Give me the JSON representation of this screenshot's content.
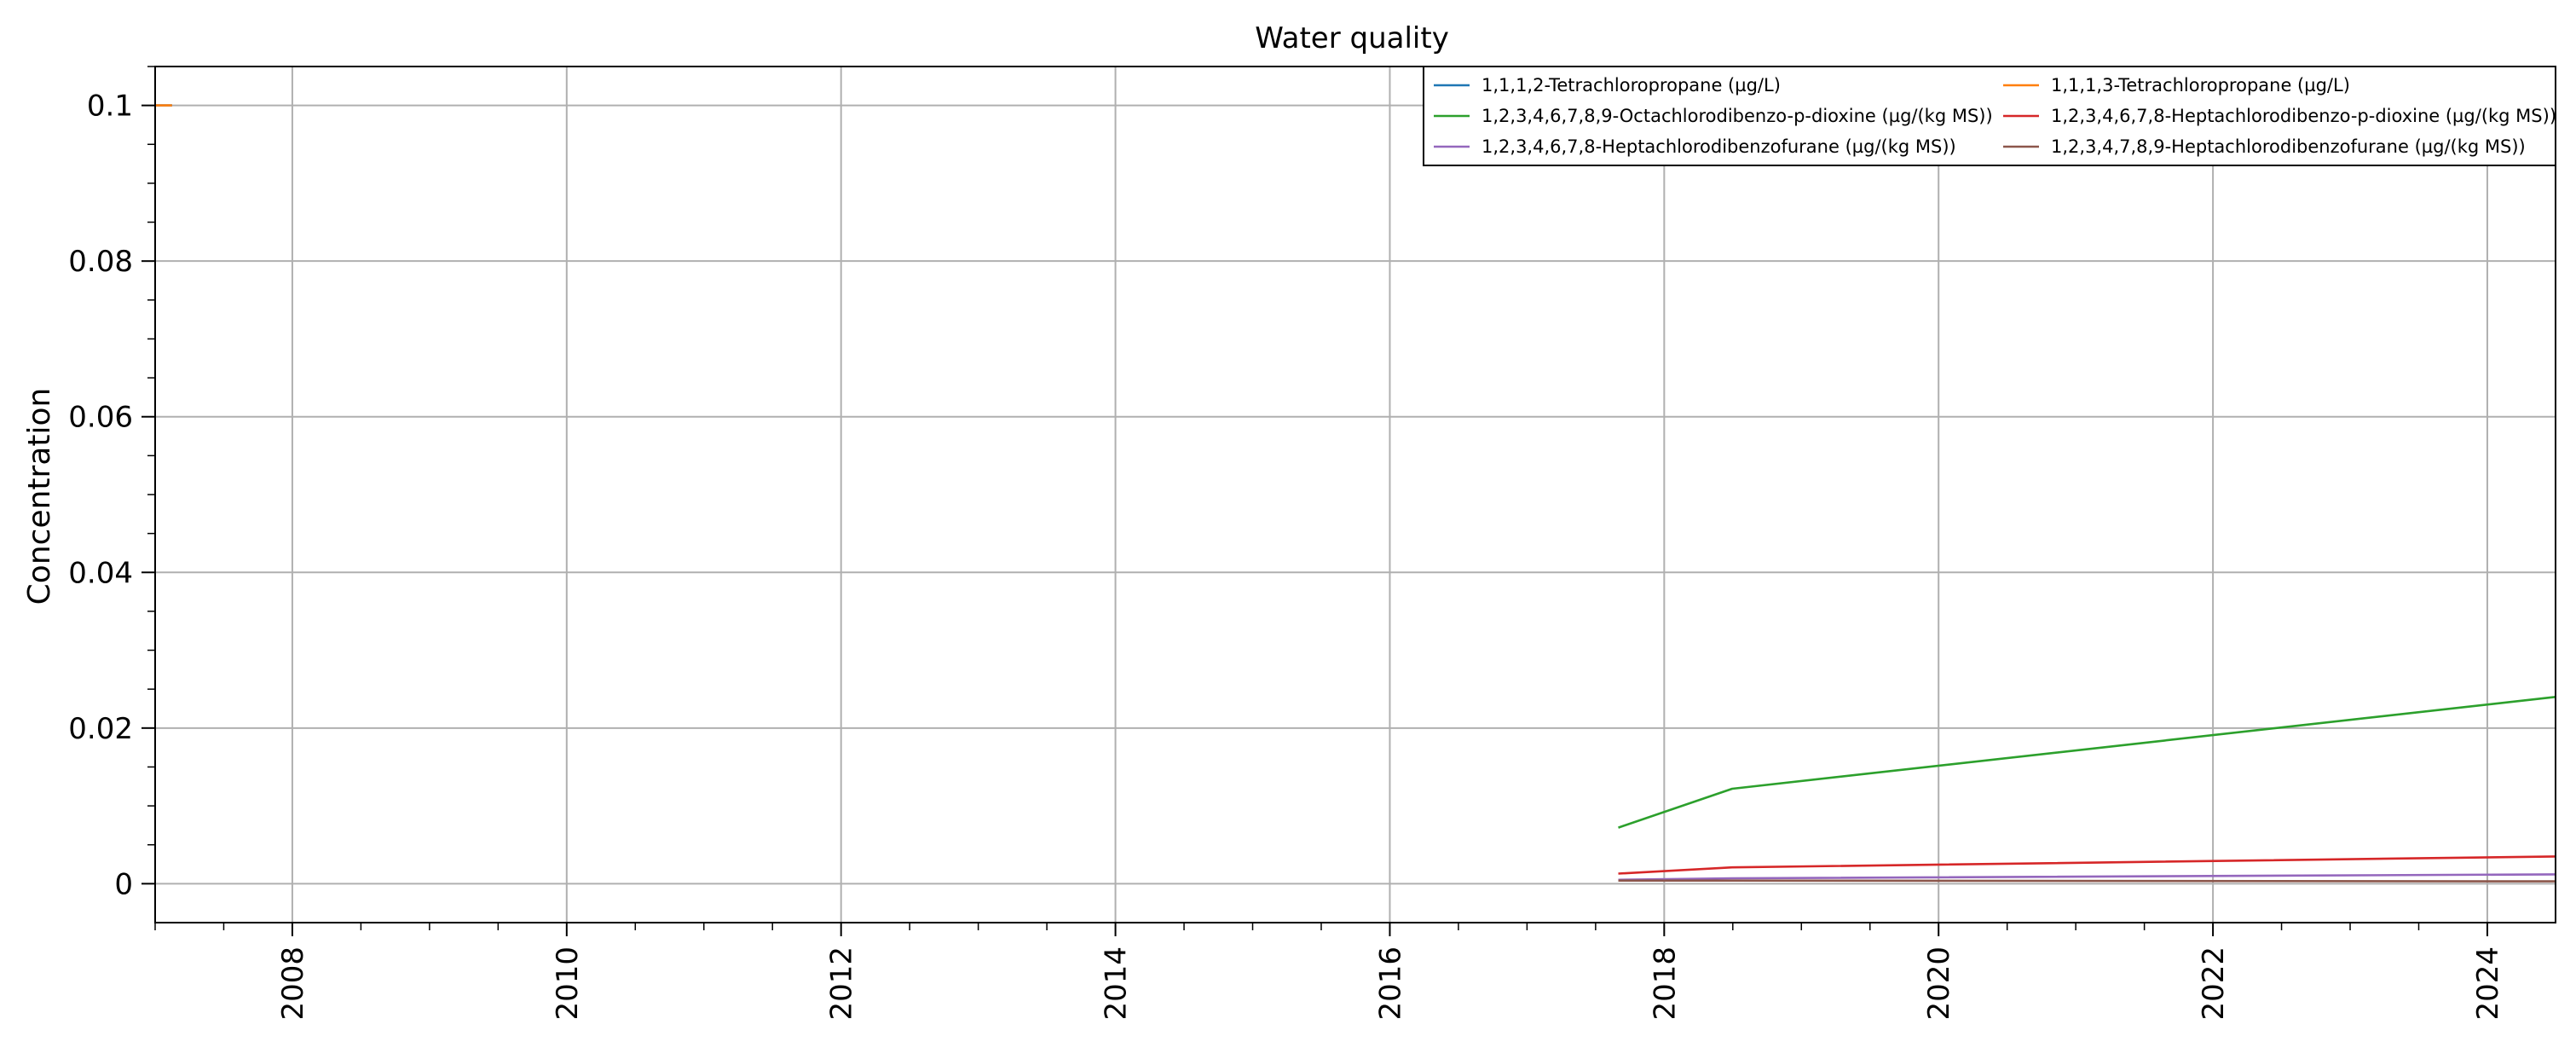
{
  "chart_data": {
    "type": "line",
    "title": "Water quality",
    "xlabel": "",
    "ylabel": "Concentration",
    "xlim": [
      "2007-01-01",
      "2024-07-01"
    ],
    "ylim": [
      -0.005,
      0.105
    ],
    "x_ticks": [
      "2008",
      "2010",
      "2012",
      "2014",
      "2016",
      "2018",
      "2020",
      "2022",
      "2024"
    ],
    "y_ticks": [
      0,
      0.02,
      0.04,
      0.06,
      0.08,
      0.1
    ],
    "y_tick_labels": [
      "0",
      "0.02",
      "0.04",
      "0.06",
      "0.08",
      "0.1"
    ],
    "grid": true,
    "legend_position": "top-right",
    "legend_columns": 2,
    "series": [
      {
        "name": "1,1,1,2-Tetrachloropropane (µg/L)",
        "color": "#1f77b4",
        "x": [
          "2007-01-01",
          "2007-02-15"
        ],
        "y": [
          0.1,
          0.1
        ]
      },
      {
        "name": "1,1,1,3-Tetrachloropropane (µg/L)",
        "color": "#ff7f0e",
        "x": [
          "2007-01-01",
          "2007-02-15"
        ],
        "y": [
          0.1,
          0.1
        ]
      },
      {
        "name": "1,2,3,4,6,7,8,9-Octachlorodibenzo-p-dioxine (µg/(kg MS))",
        "color": "#2ca02c",
        "x": [
          "2017-09-01",
          "2018-07-01",
          "2024-07-01"
        ],
        "y": [
          0.0072,
          0.0122,
          0.024
        ]
      },
      {
        "name": "1,2,3,4,6,7,8-Heptachlorodibenzo-p-dioxine (µg/(kg MS))",
        "color": "#d62728",
        "x": [
          "2017-09-01",
          "2018-07-01",
          "2024-07-01"
        ],
        "y": [
          0.0013,
          0.0021,
          0.0035
        ]
      },
      {
        "name": "1,2,3,4,6,7,8-Heptachlorodibenzofurane (µg/(kg MS))",
        "color": "#9467bd",
        "x": [
          "2017-09-01",
          "2018-07-01",
          "2024-07-01"
        ],
        "y": [
          0.0005,
          0.0007,
          0.0012
        ]
      },
      {
        "name": "1,2,3,4,7,8,9-Heptachlorodibenzofurane (µg/(kg MS))",
        "color": "#8c564b",
        "x": [
          "2017-09-01",
          "2018-07-01",
          "2024-07-01"
        ],
        "y": [
          0.0004,
          0.0004,
          0.0003
        ]
      }
    ]
  }
}
